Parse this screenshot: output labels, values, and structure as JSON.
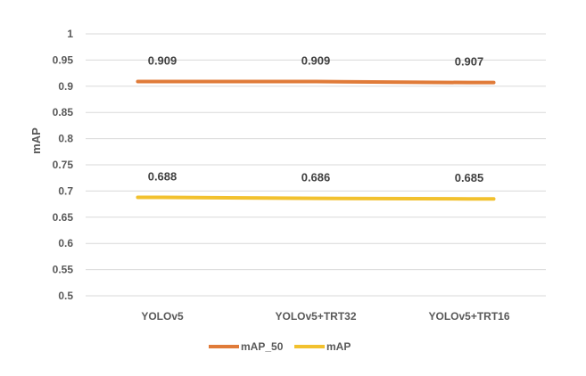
{
  "chart_data": {
    "type": "line",
    "categories": [
      "YOLOv5",
      "YOLOv5+TRT32",
      "YOLOv5+TRT16"
    ],
    "series": [
      {
        "name": "mAP_50",
        "values": [
          0.909,
          0.909,
          0.907
        ],
        "labels": [
          "0.909",
          "0.909",
          "0.907"
        ],
        "color": "#E07B39"
      },
      {
        "name": "mAP",
        "values": [
          0.688,
          0.686,
          0.685
        ],
        "labels": [
          "0.688",
          "0.686",
          "0.685"
        ],
        "color": "#F2C12E"
      }
    ],
    "ylabel": "mAP",
    "xlabel": "",
    "ylim": [
      0.5,
      1
    ],
    "yticks": [
      "0.5",
      "0.55",
      "0.6",
      "0.65",
      "0.7",
      "0.75",
      "0.8",
      "0.85",
      "0.9",
      "0.95",
      "1"
    ],
    "grid": true,
    "legend_position": "bottom"
  }
}
